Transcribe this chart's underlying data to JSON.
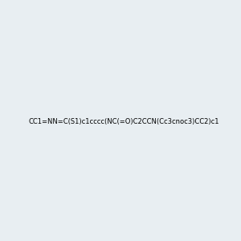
{
  "smiles": "CC1=NN=C(S1)c1cccc(NC(=O)C2CCN(Cc3cnoc3)CC2)c1",
  "title": "",
  "bg_color": "#e8eef2",
  "img_size": [
    300,
    300
  ],
  "atom_colors": {
    "N": [
      0,
      0,
      255
    ],
    "O": [
      255,
      0,
      0
    ],
    "S": [
      204,
      204,
      0
    ]
  }
}
